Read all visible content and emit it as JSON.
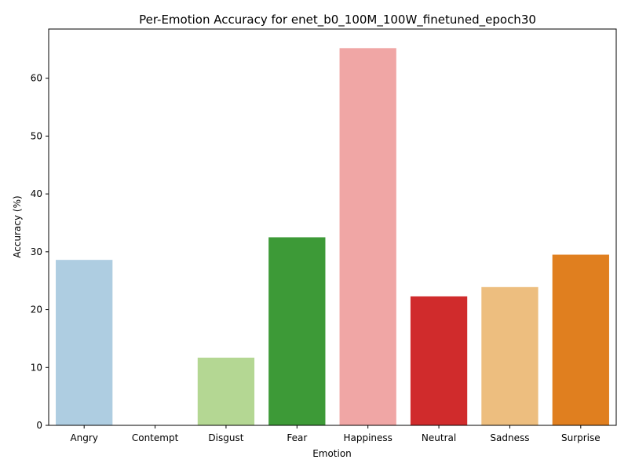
{
  "chart_data": {
    "type": "bar",
    "title": "Per-Emotion Accuracy for enet_b0_100M_100W_finetuned_epoch30",
    "xlabel": "Emotion",
    "ylabel": "Accuracy (%)",
    "categories": [
      "Angry",
      "Contempt",
      "Disgust",
      "Fear",
      "Happiness",
      "Neutral",
      "Sadness",
      "Surprise"
    ],
    "values": [
      28.6,
      0.0,
      11.7,
      32.5,
      65.2,
      22.3,
      23.9,
      29.5
    ],
    "colors": [
      "#aecde1",
      "#1f78b4",
      "#b4d793",
      "#3d9a37",
      "#f0a6a5",
      "#d02b2c",
      "#edbe7f",
      "#e07f1f"
    ],
    "ylim": [
      0,
      68.5
    ],
    "yticks": [
      0,
      10,
      20,
      30,
      40,
      50,
      60
    ],
    "grid": false,
    "legend": "none"
  }
}
